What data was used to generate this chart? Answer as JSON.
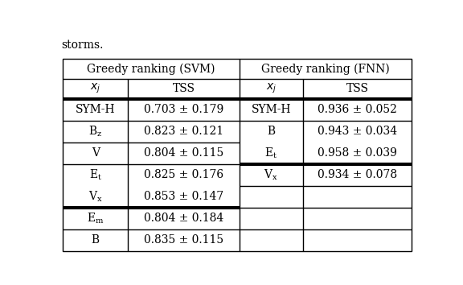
{
  "title_svm": "Greedy ranking (SVM)",
  "title_fnn": "Greedy ranking (FNN)",
  "svm_rows": [
    [
      "SYM-H",
      "0.703 ± 0.179"
    ],
    [
      "B_z",
      "0.823 ± 0.121"
    ],
    [
      "V",
      "0.804 ± 0.115"
    ],
    [
      "E_t",
      "0.825 ± 0.176"
    ],
    [
      "V_x",
      "0.853 ± 0.147"
    ],
    [
      "E_m",
      "0.804 ± 0.184"
    ],
    [
      "B",
      "0.835 ± 0.115"
    ]
  ],
  "fnn_rows": [
    [
      "SYM-H",
      "0.936 ± 0.052"
    ],
    [
      "B",
      "0.943 ± 0.034"
    ],
    [
      "E_t",
      "0.958 ± 0.039"
    ],
    [
      "V_x",
      "0.934 ± 0.078"
    ]
  ],
  "svm_thick_after_row": 4,
  "fnn_thick_after_row": 2,
  "n_data_rows": 7,
  "background": "#ffffff",
  "line_color": "#000000",
  "text_color": "#000000",
  "font_size": 10,
  "storms_text": "storms.",
  "storms_fontsize": 10
}
